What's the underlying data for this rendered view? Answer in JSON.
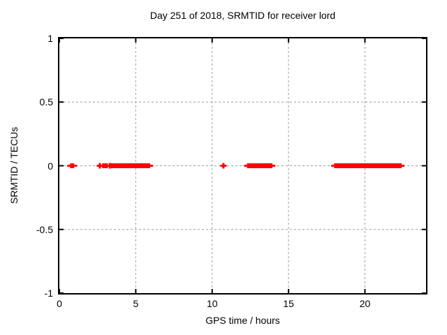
{
  "colors": {
    "background": "#ffffff",
    "axis": "#000000",
    "grid": "#9e9e9e",
    "marker": "#ff0000",
    "text": "#000000"
  },
  "chart_data": {
    "type": "scatter",
    "title": "Day 251 of 2018, SRMTID for receiver lord",
    "xlabel": "GPS time / hours",
    "ylabel": "SRMTID / TECUs",
    "xlim": [
      0,
      24
    ],
    "ylim": [
      -1,
      1
    ],
    "x_ticks": [
      0,
      5,
      10,
      15,
      20
    ],
    "x_tick_labels": [
      "0",
      "5",
      "10",
      "15",
      "20"
    ],
    "y_ticks": [
      1,
      0.5,
      0,
      -0.5,
      -1
    ],
    "y_tick_labels": [
      "1",
      "0.5",
      "0",
      "-0.5",
      "-1"
    ],
    "grid": true,
    "legend": "none",
    "marker_style": "plus",
    "series": [
      {
        "name": "SRMTID",
        "color": "#ff0000",
        "y_value": 0,
        "dense_segments_hours": [
          [
            0.7,
            0.97
          ],
          [
            2.8,
            3.17
          ],
          [
            3.35,
            5.94
          ],
          [
            12.28,
            13.95
          ],
          [
            17.98,
            22.4
          ]
        ],
        "isolated_points_hours": [
          2.65,
          3.3,
          10.74
        ]
      }
    ]
  }
}
